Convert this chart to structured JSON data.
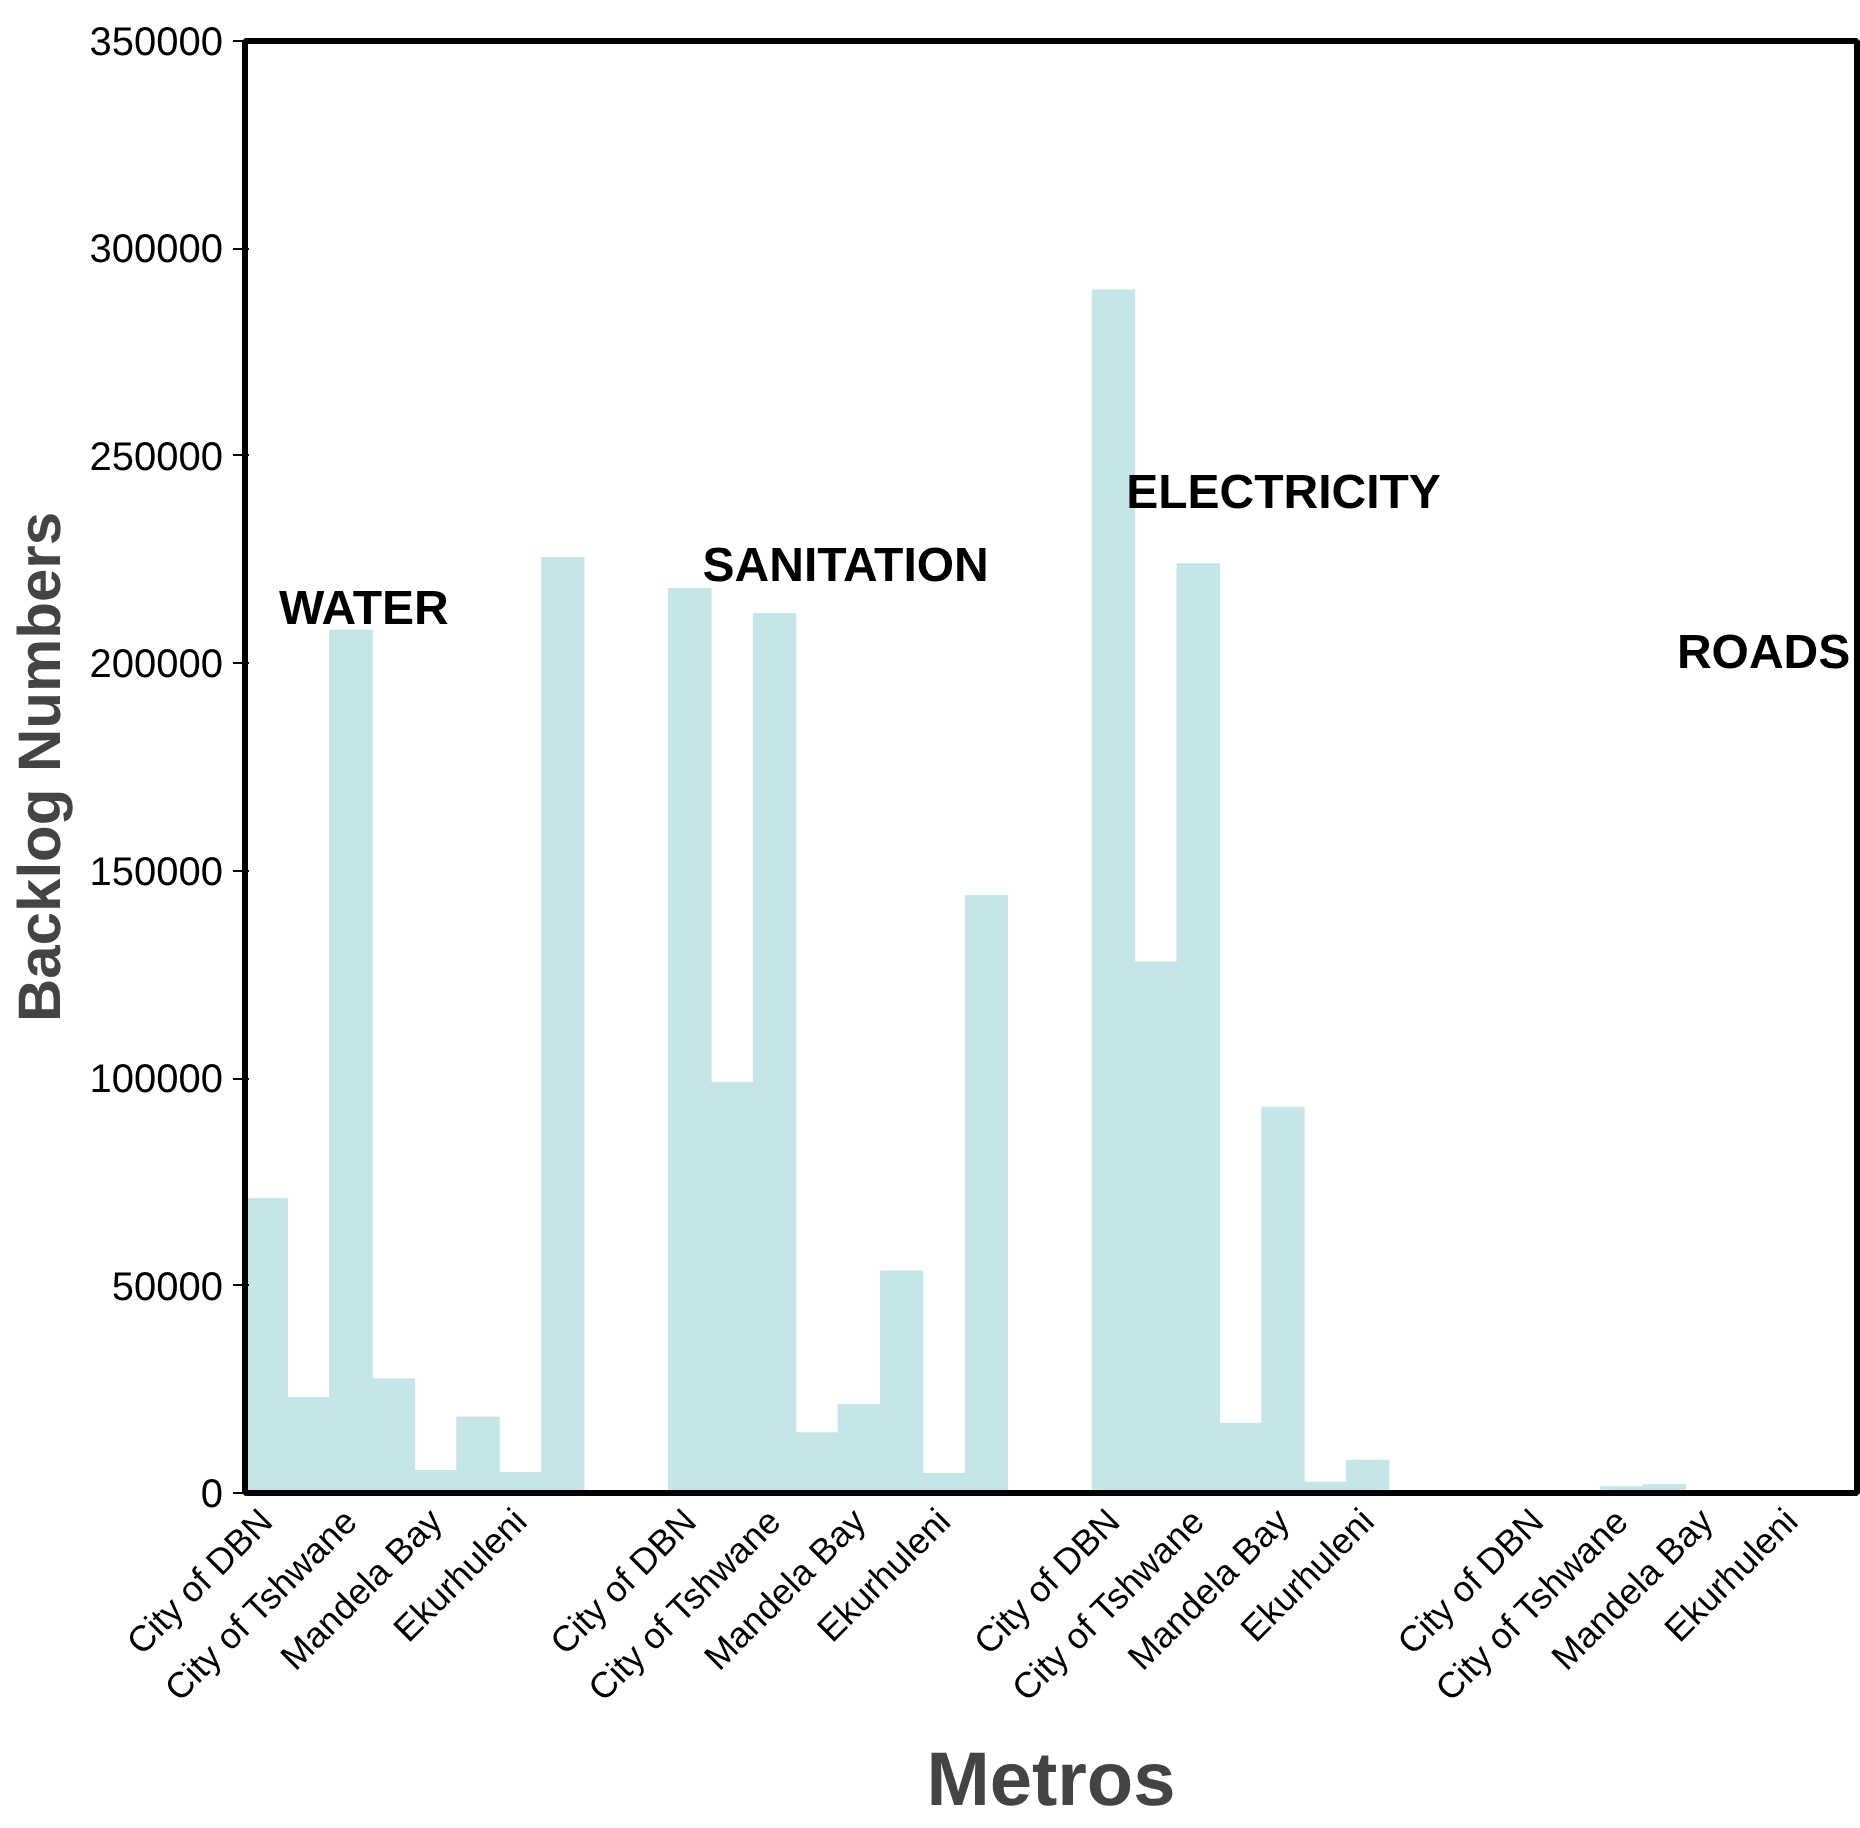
{
  "chart_data": {
    "type": "bar",
    "xlabel": "Metros",
    "ylabel": "Backlog Numbers",
    "categories": [
      "City of DBN",
      null,
      "City of Tshwane",
      null,
      "Mandela Bay",
      null,
      "Ekurhuleni",
      null,
      null,
      null,
      "City of DBN",
      null,
      "City of Tshwane",
      null,
      "Mandela Bay",
      null,
      "Ekurhuleni",
      null,
      null,
      null,
      "City of DBN",
      null,
      "City of Tshwane",
      null,
      "Mandela Bay",
      null,
      "Ekurhuleni",
      null,
      null,
      null,
      "City of DBN",
      null,
      "City of Tshwane",
      null,
      "Mandela Bay",
      null,
      "Ekurhuleni",
      null
    ],
    "values": [
      71000,
      23000,
      208000,
      27500,
      5400,
      18300,
      4900,
      225500,
      null,
      null,
      218000,
      99000,
      212000,
      14500,
      21300,
      53500,
      4700,
      144000,
      null,
      null,
      290000,
      128000,
      224000,
      16800,
      93000,
      2600,
      7900,
      0,
      null,
      null,
      null,
      null,
      1500,
      2000,
      0,
      0,
      0,
      null
    ],
    "color": "#c5e5e8",
    "ylim": [
      0,
      350000
    ],
    "yticks": [
      0,
      50000,
      100000,
      150000,
      200000,
      250000,
      300000,
      350000
    ],
    "grid": false,
    "annotations": [
      "WATER",
      "SANITATION",
      "ELECTRICITY",
      "ROADS"
    ]
  }
}
